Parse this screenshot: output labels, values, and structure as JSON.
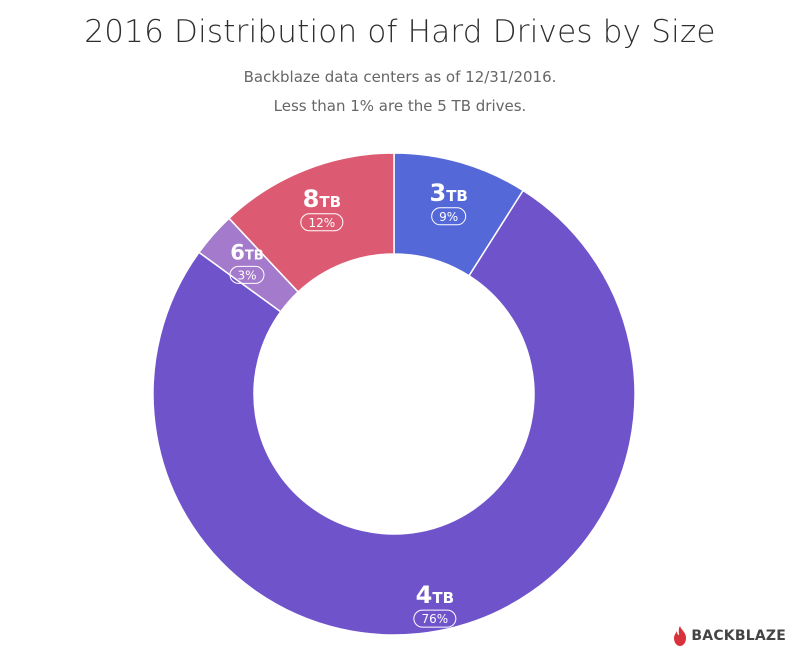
{
  "chart_data": {
    "type": "pie",
    "title": "2016 Distribution of Hard Drives by Size",
    "subtitle_lines": [
      "Backblaze data centers as of 12/31/2016.",
      "Less than 1% are the 5 TB drives."
    ],
    "donut": true,
    "start": "12 o'clock, clockwise",
    "slices": [
      {
        "size": "3",
        "unit": "TB",
        "value": 9,
        "pct_label": "9%",
        "color": "#5468d8"
      },
      {
        "size": "4",
        "unit": "TB",
        "value": 76,
        "pct_label": "76%",
        "color": "#6f53cb"
      },
      {
        "size": "6",
        "unit": "TB",
        "value": 3,
        "pct_label": "3%",
        "color": "#a47bcc"
      },
      {
        "size": "8",
        "unit": "TB",
        "value": 12,
        "pct_label": "12%",
        "color": "#dd5b72"
      }
    ]
  },
  "brand": {
    "logo_text": "BACKBLAZE",
    "logo_color": "#d8323c"
  }
}
